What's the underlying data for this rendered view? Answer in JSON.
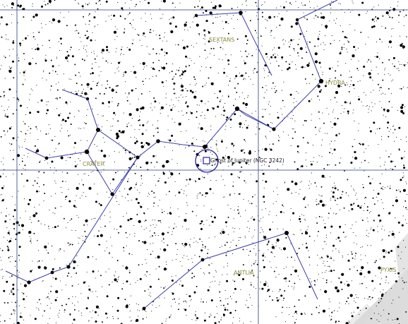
{
  "map": {
    "constellation_labels": {
      "sextans": "SEXTANS",
      "hydra": "HYDRA",
      "crater": "CRATER",
      "antlia": "ANTLIA",
      "pyxis": "PYXIS"
    },
    "target_object": "Ghost of Jupiter (NGC 3242)",
    "colors": {
      "background": "#ffffff",
      "stars": "#000000",
      "constellation_lines": "#3b3fa8",
      "grid_lines": "#2a3b7a",
      "constellation_labels": "#8a8a3c",
      "target_marker": "#2020a0",
      "milky_way": "#d8d8d8"
    },
    "icons": [
      "star-dot",
      "target-circle-marker"
    ]
  }
}
